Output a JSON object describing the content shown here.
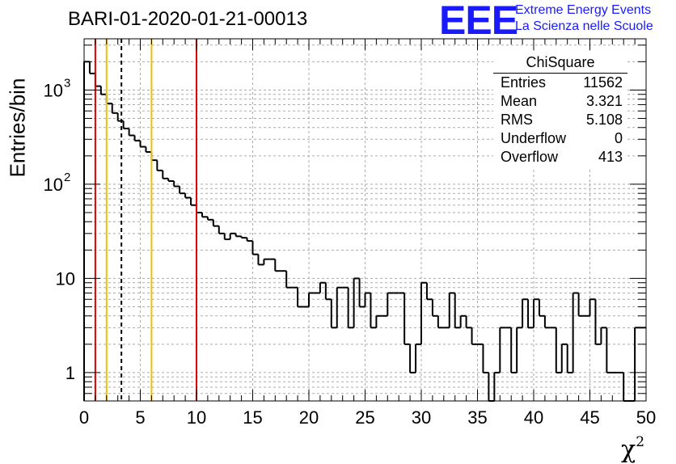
{
  "header": {
    "title": "BARI-01-2020-01-21-00013",
    "logo_text": "EEE",
    "logo_line1": "Extreme Energy Events",
    "logo_line2": "La Scienza nelle Scuole"
  },
  "stats_box": {
    "name": "ChiSquare",
    "rows": [
      {
        "key": "Entries",
        "value": "11562"
      },
      {
        "key": "Mean",
        "value": "3.321"
      },
      {
        "key": "RMS",
        "value": "5.108"
      },
      {
        "key": "Underflow",
        "value": "0"
      },
      {
        "key": "Overflow",
        "value": "413"
      }
    ]
  },
  "colors": {
    "red_line": "#dd0000",
    "yellow_line": "#f0c000",
    "histogram": "#000000",
    "grid": "#aaaaaa"
  },
  "chart_data": {
    "type": "histogram",
    "title": "BARI-01-2020-01-21-00013",
    "xlabel": "χ",
    "xlabel_sup": "2",
    "ylabel": "Entries/bin",
    "xlim": [
      0,
      50
    ],
    "ylim": [
      0.5,
      3500
    ],
    "yscale": "log",
    "grid": true,
    "bin_width": 0.5,
    "x_ticks": [
      0,
      5,
      10,
      15,
      20,
      25,
      30,
      35,
      40,
      45,
      50
    ],
    "x_tick_labels": [
      "0",
      "5",
      "10",
      "15",
      "20",
      "25",
      "30",
      "35",
      "40",
      "45",
      "50"
    ],
    "y_ticks": [
      1,
      10,
      100,
      1000
    ],
    "y_tick_labels": [
      {
        "base": "1",
        "exp": ""
      },
      {
        "base": "10",
        "exp": ""
      },
      {
        "base": "10",
        "exp": "2"
      },
      {
        "base": "10",
        "exp": "3"
      }
    ],
    "values": [
      2000,
      1500,
      1100,
      900,
      720,
      570,
      470,
      390,
      330,
      290,
      250,
      220,
      180,
      140,
      115,
      108,
      95,
      80,
      72,
      60,
      50,
      45,
      42,
      36,
      30,
      26,
      30,
      28,
      27,
      25,
      18,
      14,
      16,
      16,
      12,
      12,
      8,
      8,
      5,
      5,
      7,
      7,
      9,
      6,
      3,
      8,
      8,
      3,
      10,
      5,
      7,
      3,
      4,
      4,
      7,
      7,
      7,
      2,
      1,
      2,
      9,
      6,
      4,
      3,
      3,
      7,
      3,
      4,
      3,
      2,
      2,
      1,
      0,
      1,
      3,
      3,
      1,
      3,
      6,
      3,
      6,
      4,
      3,
      3,
      1,
      2,
      1,
      7,
      4,
      4,
      6,
      2,
      3,
      1,
      1,
      1,
      0,
      0,
      3,
      3
    ],
    "vertical_lines": [
      {
        "x": 1.0,
        "color": "red",
        "style": "solid"
      },
      {
        "x": 2.0,
        "color": "yellow",
        "style": "solid"
      },
      {
        "x": 3.321,
        "color": "black",
        "style": "dashed"
      },
      {
        "x": 6.0,
        "color": "yellow",
        "style": "solid"
      },
      {
        "x": 10.0,
        "color": "red",
        "style": "solid"
      }
    ]
  }
}
